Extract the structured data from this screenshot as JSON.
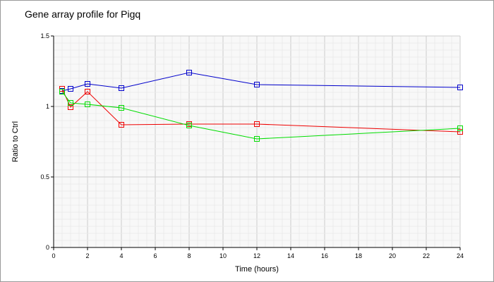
{
  "chart_data": {
    "type": "line",
    "title": "Gene array profile for Pigq",
    "xlabel": "Time (hours)",
    "ylabel": "Ratio to Ctrl",
    "xlim": [
      0,
      24
    ],
    "ylim": [
      0,
      1.5
    ],
    "xticks": [
      0,
      2,
      4,
      6,
      8,
      10,
      12,
      14,
      16,
      18,
      20,
      22,
      24
    ],
    "yticks": [
      0,
      0.5,
      1,
      1.5
    ],
    "ytick_labels": [
      "0",
      "0.5",
      "1",
      "1.5"
    ],
    "grid": true,
    "x": [
      0.5,
      1,
      2,
      4,
      8,
      12,
      24
    ],
    "series": [
      {
        "name": "blue",
        "color": "#0000cc",
        "values": [
          1.11,
          1.125,
          1.16,
          1.13,
          1.24,
          1.155,
          1.135
        ]
      },
      {
        "name": "red",
        "color": "#ee0000",
        "values": [
          1.125,
          0.995,
          1.105,
          0.87,
          0.875,
          0.875,
          0.82
        ]
      },
      {
        "name": "green",
        "color": "#00dd00",
        "values": [
          1.105,
          1.025,
          1.015,
          0.99,
          0.865,
          0.77,
          0.845
        ]
      }
    ]
  }
}
